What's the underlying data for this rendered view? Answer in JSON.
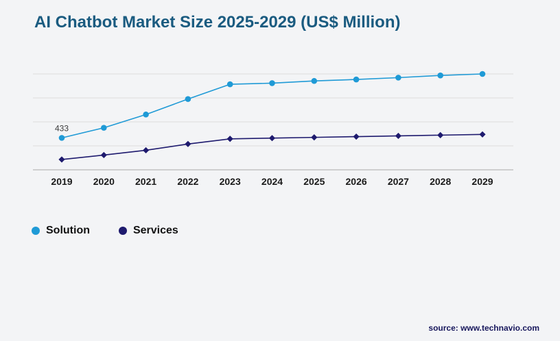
{
  "title": "AI Chatbot Market Size 2025-2029 (US$ Million)",
  "legend": [
    {
      "label": "Solution",
      "color": "#1f9ad6"
    },
    {
      "label": "Services",
      "color": "#1e1a6e"
    }
  ],
  "source": "source: www.technavio.com",
  "chart_data": {
    "type": "line",
    "title": "AI Chatbot Market Size 2025-2029 (US$ Million)",
    "xlabel": "",
    "ylabel": "",
    "categories": [
      "2019",
      "2020",
      "2021",
      "2022",
      "2023",
      "2024",
      "2025",
      "2026",
      "2027",
      "2028",
      "2029"
    ],
    "series": [
      {
        "name": "Solution",
        "color": "#1f9ad6",
        "marker": "circle",
        "values": [
          433,
          570,
          750,
          960,
          1160,
          1175,
          1205,
          1225,
          1250,
          1280,
          1300
        ]
      },
      {
        "name": "Services",
        "color": "#1e1a6e",
        "marker": "diamond",
        "values": [
          140,
          200,
          265,
          350,
          420,
          430,
          440,
          450,
          460,
          470,
          480
        ]
      }
    ],
    "ylim": [
      0,
      1300
    ],
    "grid": true,
    "legend_position": "bottom-left",
    "annotations": [
      {
        "series": "Solution",
        "index": 0,
        "text": "433"
      }
    ]
  }
}
